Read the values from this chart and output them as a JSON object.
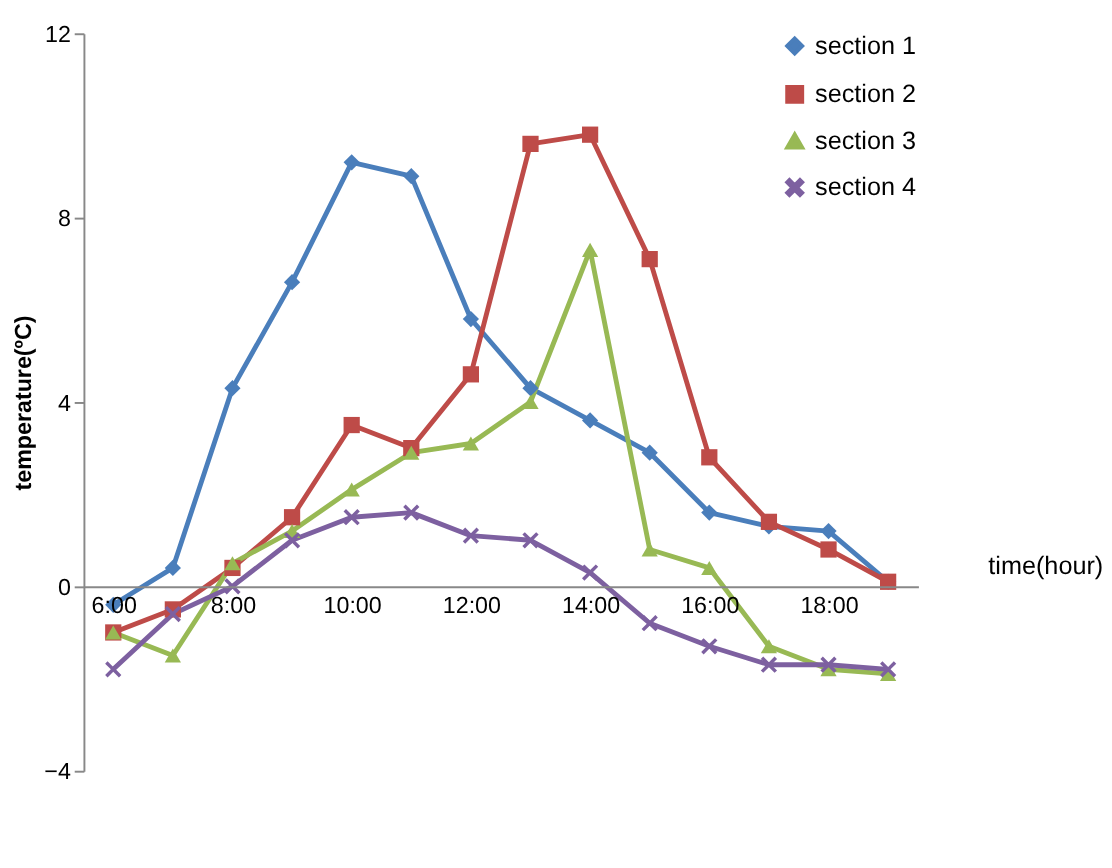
{
  "chart_data": {
    "type": "line",
    "xlabel": "time(hour)",
    "ylabel": "temperature(ºC)",
    "categories": [
      "6:00",
      null,
      "8:00",
      null,
      "10:00",
      null,
      "12:00",
      null,
      "14:00",
      null,
      "16:00",
      null,
      "18:00",
      null
    ],
    "series": [
      {
        "name": "section 1",
        "color": "#4a7ebb",
        "marker": "diamond",
        "values": [
          -0.4,
          0.4,
          4.3,
          6.6,
          9.2,
          8.9,
          5.8,
          4.3,
          3.6,
          2.9,
          1.6,
          1.3,
          1.2,
          0.1
        ]
      },
      {
        "name": "section 2",
        "color": "#be4b48",
        "marker": "square",
        "values": [
          -1.0,
          -0.5,
          0.4,
          1.5,
          3.5,
          3.0,
          4.6,
          9.6,
          9.8,
          7.1,
          2.8,
          1.4,
          0.8,
          0.1
        ]
      },
      {
        "name": "section 3",
        "color": "#98b954",
        "marker": "triangle",
        "values": [
          -1.0,
          -1.5,
          0.5,
          1.2,
          2.1,
          2.9,
          3.1,
          4.0,
          7.3,
          0.8,
          0.4,
          -1.3,
          -1.8,
          -1.9
        ]
      },
      {
        "name": "section 4",
        "color": "#7d60a0",
        "marker": "cross",
        "values": [
          -1.8,
          -0.6,
          0.0,
          1.0,
          1.5,
          1.6,
          1.1,
          1.0,
          0.3,
          -0.8,
          -1.3,
          -1.7,
          -1.7,
          -1.8
        ]
      }
    ],
    "ylim": [
      -4,
      12
    ],
    "yticks": [
      -4,
      0,
      4,
      8,
      12
    ],
    "grid": false,
    "legend": "top right",
    "line_style": "solid"
  }
}
